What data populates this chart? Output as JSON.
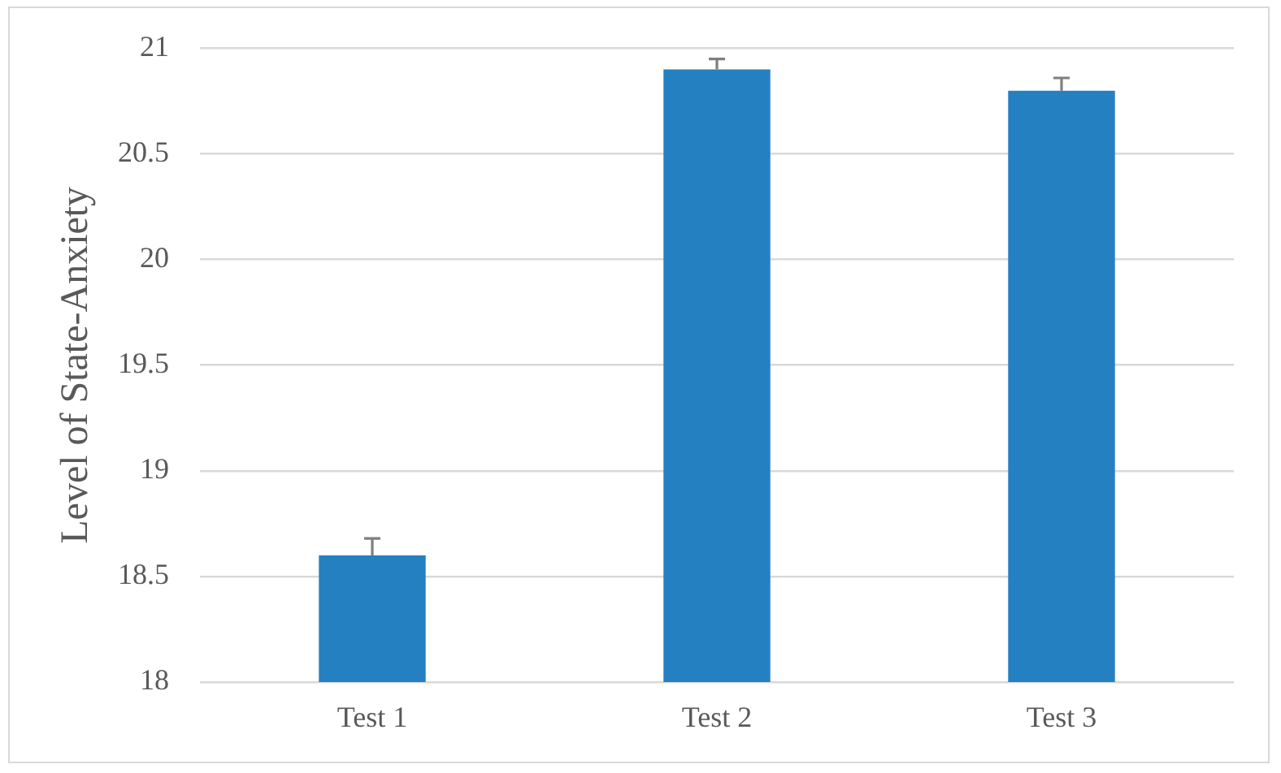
{
  "chart_data": {
    "type": "bar",
    "ylabel": "Level of State-Anxiety",
    "categories": [
      "Test 1",
      "Test 2",
      "Test 3"
    ],
    "values": [
      18.6,
      20.9,
      20.8
    ],
    "errors": [
      [
        18.6,
        18.68
      ],
      [
        20.9,
        20.95
      ],
      [
        20.8,
        20.86
      ]
    ],
    "color": "#2580c2",
    "ylim": [
      18,
      21
    ],
    "yticks": [
      18,
      18.5,
      19,
      19.5,
      20,
      20.5,
      21
    ],
    "grid": "y"
  }
}
